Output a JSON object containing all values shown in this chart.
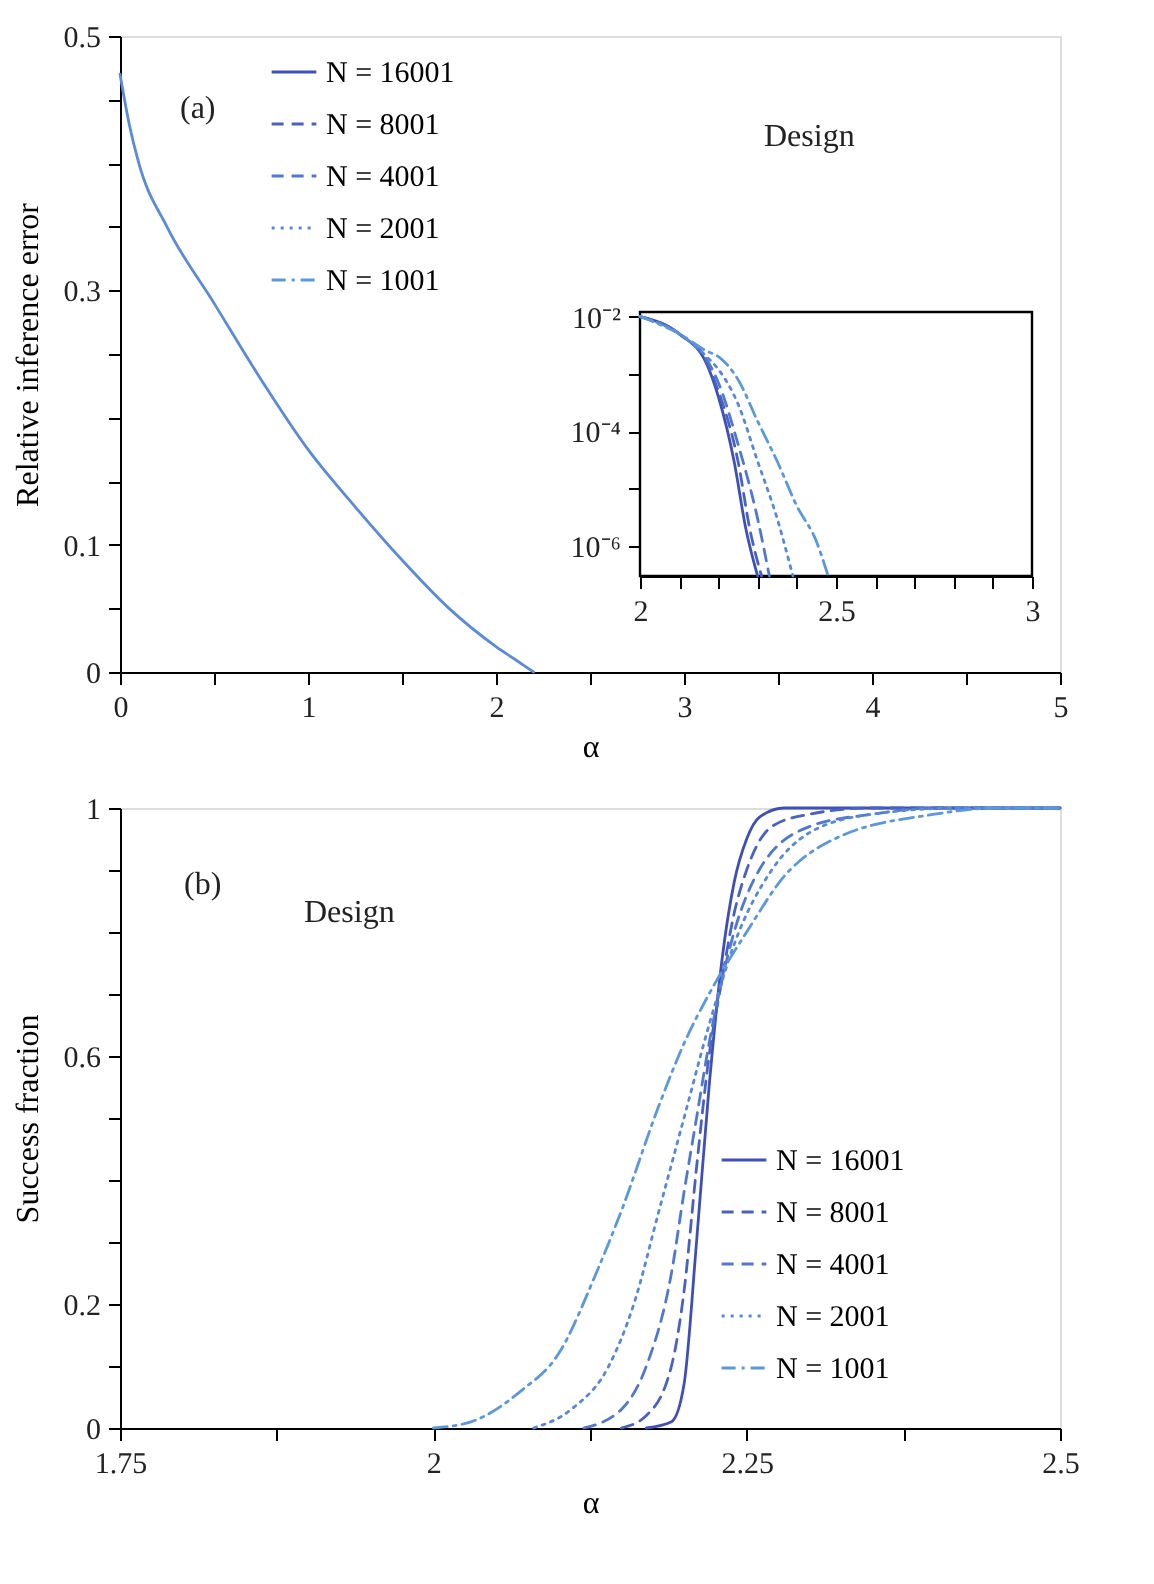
{
  "chart_data": [
    {
      "type": "line",
      "xlabel": "α",
      "ylabel": "Relative inference error",
      "annotations": [
        "(a)",
        "Design"
      ],
      "xlim": [
        0,
        5
      ],
      "ylim": [
        0,
        0.5
      ],
      "xticks": [
        0,
        {
          "value": 0.5,
          "label": null
        },
        1,
        {
          "value": 1.5,
          "label": null
        },
        2,
        {
          "value": 2.5,
          "label": null
        },
        3,
        {
          "value": 3.5,
          "label": null
        },
        4,
        {
          "value": 4.5,
          "label": null
        },
        5
      ],
      "yticks": [
        0,
        {
          "value": 0.05,
          "label": null
        },
        0.1,
        {
          "value": 0.15,
          "label": null
        },
        {
          "value": 0.2,
          "label": null
        },
        {
          "value": 0.25,
          "label": null
        },
        0.3,
        {
          "value": 0.35,
          "label": null
        },
        {
          "value": 0.4,
          "label": null
        },
        {
          "value": 0.45,
          "label": null
        },
        0.5
      ],
      "grid": false,
      "legend": false,
      "x": [
        0,
        0.05,
        0.1,
        0.25,
        0.5,
        0.75,
        1,
        1.25,
        1.5,
        1.75,
        2,
        2.1,
        2.2
      ],
      "series": [
        {
          "color": "#5a8ad8",
          "line_style": "solid",
          "values": [
            0.47,
            0.43,
            0.4,
            0.35,
            0.29,
            0.23,
            0.175,
            0.13,
            0.088,
            0.05,
            0.02,
            0.01,
            0
          ]
        }
      ]
    },
    {
      "type": "line",
      "log": "y",
      "xlim": [
        2,
        3
      ],
      "ylim": [
        3e-07,
        0.012
      ],
      "xticks": [
        2,
        {
          "value": 2.1,
          "label": null
        },
        {
          "value": 2.2,
          "label": null
        },
        {
          "value": 2.3,
          "label": null
        },
        {
          "value": 2.4,
          "label": null
        },
        2.5,
        {
          "value": 2.6,
          "label": null
        },
        {
          "value": 2.7,
          "label": null
        },
        {
          "value": 2.8,
          "label": null
        },
        {
          "value": 2.9,
          "label": null
        },
        3
      ],
      "yticks": [
        {
          "value": 0.01,
          "label": "10⁻²"
        },
        {
          "value": 0.001,
          "label": null
        },
        {
          "value": 0.0001,
          "label": "10⁻⁴"
        },
        {
          "value": 1e-05,
          "label": null
        },
        {
          "value": 1e-06,
          "label": "10⁻⁶"
        }
      ],
      "grid": false,
      "legend": "top left",
      "series": [
        {
          "name": "N = 16001",
          "color": "#3f4fb8",
          "line_style": "solid",
          "x": [
            2,
            2.1,
            2.17,
            2.2,
            2.24,
            2.27,
            2.3
          ],
          "values": [
            0.01,
            0.005,
            0.0015,
            0.0004,
            3e-05,
            2e-06,
            3e-07
          ]
        },
        {
          "name": "N = 8001",
          "color": "#4862c4",
          "line_style": "dashed",
          "x": [
            2,
            2.1,
            2.17,
            2.2,
            2.25,
            2.28,
            2.31
          ],
          "values": [
            0.01,
            0.005,
            0.0016,
            0.0005,
            3e-05,
            2e-06,
            3e-07
          ]
        },
        {
          "name": "N = 4001",
          "color": "#4f78d0",
          "line_style": "dashed",
          "x": [
            2,
            2.1,
            2.17,
            2.2,
            2.25,
            2.3,
            2.33
          ],
          "values": [
            0.01,
            0.005,
            0.0018,
            0.0007,
            6e-05,
            3e-06,
            3e-07
          ]
        },
        {
          "name": "N = 2001",
          "color": "#5789d8",
          "line_style": "dotted",
          "x": [
            2,
            2.1,
            2.17,
            2.2,
            2.25,
            2.3,
            2.35,
            2.39
          ],
          "values": [
            0.01,
            0.005,
            0.002,
            0.0012,
            0.0003,
            3e-05,
            3e-06,
            3e-07
          ]
        },
        {
          "name": "N = 1001",
          "color": "#5a98de",
          "line_style": "dashdot",
          "x": [
            2,
            2.1,
            2.17,
            2.2,
            2.25,
            2.3,
            2.35,
            2.4,
            2.45,
            2.48
          ],
          "values": [
            0.01,
            0.005,
            0.0025,
            0.002,
            0.0008,
            0.00015,
            3e-05,
            5e-06,
            1.2e-06,
            3e-07
          ]
        }
      ]
    },
    {
      "type": "line",
      "xlabel": "α",
      "ylabel": "Success fraction",
      "annotations": [
        "(b)",
        "Design"
      ],
      "xlim": [
        1.75,
        2.5
      ],
      "ylim": [
        0,
        1
      ],
      "xticks": [
        1.75,
        {
          "value": 1.875,
          "label": null
        },
        2,
        {
          "value": 2.125,
          "label": null
        },
        2.25,
        {
          "value": 2.375,
          "label": null
        },
        2.5
      ],
      "yticks": [
        0,
        {
          "value": 0.1,
          "label": null
        },
        0.2,
        {
          "value": 0.3,
          "label": null
        },
        {
          "value": 0.4,
          "label": null
        },
        {
          "value": 0.5,
          "label": null
        },
        0.6,
        {
          "value": 0.7,
          "label": null
        },
        {
          "value": 0.8,
          "label": null
        },
        {
          "value": 0.9,
          "label": null
        },
        1
      ],
      "grid": false,
      "legend": "bottom right",
      "series": [
        {
          "name": "N = 16001",
          "color": "#3f4fb8",
          "line_style": "solid",
          "x": [
            2.17,
            2.19,
            2.2,
            2.21,
            2.22,
            2.23,
            2.24,
            2.25,
            2.26,
            2.28,
            2.5
          ],
          "values": [
            0,
            0.01,
            0.07,
            0.3,
            0.55,
            0.75,
            0.88,
            0.95,
            0.985,
            1,
            1
          ]
        },
        {
          "name": "N = 8001",
          "color": "#4862c4",
          "line_style": "dashed",
          "x": [
            2.15,
            2.17,
            2.19,
            2.2,
            2.21,
            2.22,
            2.23,
            2.24,
            2.25,
            2.27,
            2.3,
            2.35,
            2.5
          ],
          "values": [
            0,
            0.02,
            0.1,
            0.22,
            0.42,
            0.6,
            0.72,
            0.83,
            0.9,
            0.97,
            0.99,
            1,
            1
          ]
        },
        {
          "name": "N = 4001",
          "color": "#4f78d0",
          "line_style": "dashed",
          "x": [
            2.12,
            2.15,
            2.17,
            2.19,
            2.2,
            2.21,
            2.22,
            2.24,
            2.26,
            2.3,
            2.35,
            2.4,
            2.5
          ],
          "values": [
            0,
            0.03,
            0.1,
            0.25,
            0.38,
            0.5,
            0.62,
            0.8,
            0.9,
            0.97,
            0.99,
            1,
            1
          ]
        },
        {
          "name": "N = 2001",
          "color": "#5789d8",
          "line_style": "dotted",
          "x": [
            2.08,
            2.11,
            2.14,
            2.16,
            2.18,
            2.2,
            2.22,
            2.24,
            2.27,
            2.3,
            2.35,
            2.42,
            2.5
          ],
          "values": [
            0,
            0.03,
            0.1,
            0.2,
            0.35,
            0.5,
            0.65,
            0.78,
            0.9,
            0.96,
            0.99,
            1,
            1
          ]
        },
        {
          "name": "N = 1001",
          "color": "#5a98de",
          "line_style": "dashdot",
          "x": [
            2.0,
            2.03,
            2.07,
            2.1,
            2.13,
            2.15,
            2.18,
            2.2,
            2.22,
            2.25,
            2.28,
            2.32,
            2.4,
            2.45,
            2.5
          ],
          "values": [
            0,
            0.01,
            0.06,
            0.12,
            0.25,
            0.35,
            0.52,
            0.62,
            0.7,
            0.8,
            0.89,
            0.95,
            0.99,
            1,
            1
          ]
        }
      ]
    }
  ]
}
